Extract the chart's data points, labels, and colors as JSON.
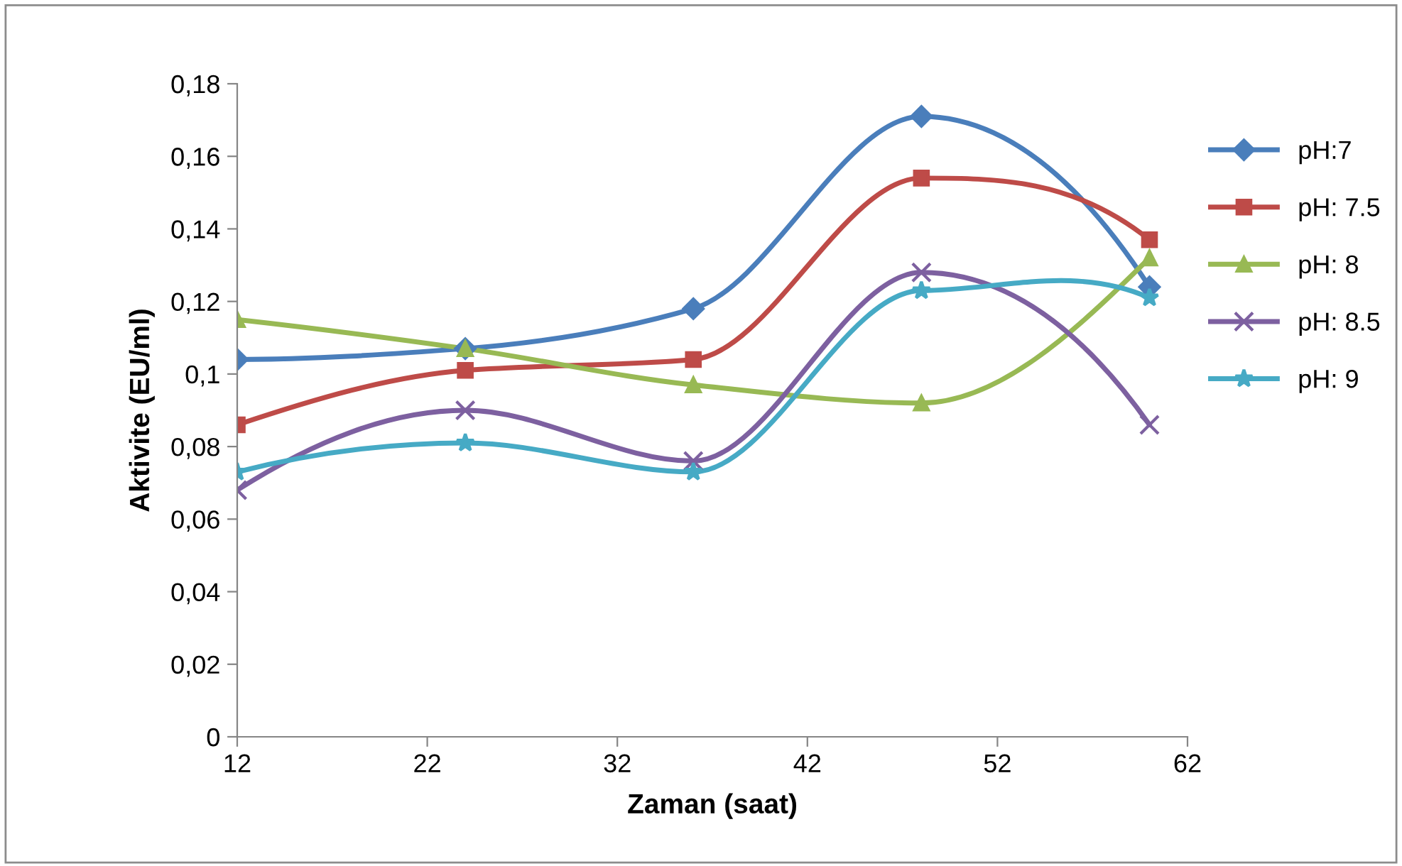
{
  "chart_data": {
    "type": "line",
    "xlabel": "Zaman (saat)",
    "ylabel": "Aktivite (EU/ml)",
    "x": [
      12,
      24,
      36,
      48,
      60
    ],
    "xlim": [
      12,
      62
    ],
    "xticks": [
      12,
      22,
      32,
      42,
      52,
      62
    ],
    "ylim": [
      0,
      0.18
    ],
    "yticks": [
      0,
      {
        "value": 0.02,
        "label": "0,02"
      },
      {
        "value": 0.04,
        "label": "0,04"
      },
      {
        "value": 0.06,
        "label": "0,06"
      },
      {
        "value": 0.08,
        "label": "0,08"
      },
      {
        "value": 0.1,
        "label": "0,1"
      },
      {
        "value": 0.12,
        "label": "0,12"
      },
      {
        "value": 0.14,
        "label": "0,14"
      },
      {
        "value": 0.16,
        "label": "0,16"
      },
      {
        "value": 0.18,
        "label": "0,18"
      }
    ],
    "grid": false,
    "legend": "right",
    "series": [
      {
        "name": "pH:7",
        "color": "#4a7ebb",
        "marker": "diamond",
        "values": [
          0.104,
          0.107,
          0.118,
          0.171,
          0.124
        ]
      },
      {
        "name": "pH: 7.5",
        "color": "#be4b48",
        "marker": "square",
        "values": [
          0.086,
          0.101,
          0.104,
          0.154,
          0.137
        ]
      },
      {
        "name": "pH: 8",
        "color": "#98b954",
        "marker": "triangle",
        "values": [
          0.115,
          0.107,
          0.097,
          0.092,
          0.132
        ]
      },
      {
        "name": "pH: 8.5",
        "color": "#7d60a0",
        "marker": "cross",
        "values": [
          0.068,
          0.09,
          0.076,
          0.128,
          0.086
        ]
      },
      {
        "name": "pH: 9",
        "color": "#46aac5",
        "marker": "star",
        "values": [
          0.073,
          0.081,
          0.073,
          0.123,
          0.121
        ]
      }
    ]
  }
}
